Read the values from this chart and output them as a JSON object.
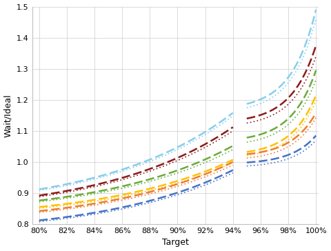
{
  "title": "",
  "xlabel": "Target",
  "ylabel": "Wait/Ideal",
  "xlim": [
    0.795,
    1.002
  ],
  "ylim": [
    0.8,
    1.5
  ],
  "yticks": [
    0.8,
    0.9,
    1.0,
    1.1,
    1.2,
    1.3,
    1.4,
    1.5
  ],
  "xticks": [
    0.8,
    0.82,
    0.84,
    0.86,
    0.88,
    0.9,
    0.92,
    0.94,
    0.96,
    0.98,
    1.0
  ],
  "background_color": "#FFFFFF",
  "grid_color": "#C0C0C0",
  "pairs": [
    {
      "color": "#87CEEB",
      "f_s": 0.912,
      "f_e94": 1.158,
      "f_e100": 1.49,
      "s_s": 0.908,
      "s_e94": 1.148,
      "s_e100": 1.46
    },
    {
      "color": "#8B1A1A",
      "f_s": 0.892,
      "f_e94": 1.112,
      "f_e100": 1.375,
      "s_s": 0.888,
      "s_e94": 1.1,
      "s_e100": 1.34
    },
    {
      "color": "#6AAB3A",
      "f_s": 0.876,
      "f_e94": 1.052,
      "f_e100": 1.295,
      "s_s": 0.872,
      "s_e94": 1.04,
      "s_e100": 1.265
    },
    {
      "color": "#FFC000",
      "f_s": 0.855,
      "f_e94": 1.007,
      "f_e100": 1.215,
      "s_s": 0.851,
      "s_e94": 0.998,
      "s_e100": 1.198
    },
    {
      "color": "#ED7D31",
      "f_s": 0.842,
      "f_e94": 1.0,
      "f_e100": 1.158,
      "s_s": 0.838,
      "s_e94": 0.99,
      "s_e100": 1.142
    },
    {
      "color": "#4472C4",
      "f_s": 0.812,
      "f_e94": 0.974,
      "f_e100": 1.085,
      "s_s": 0.808,
      "s_e94": 0.965,
      "s_e100": 1.07
    }
  ]
}
